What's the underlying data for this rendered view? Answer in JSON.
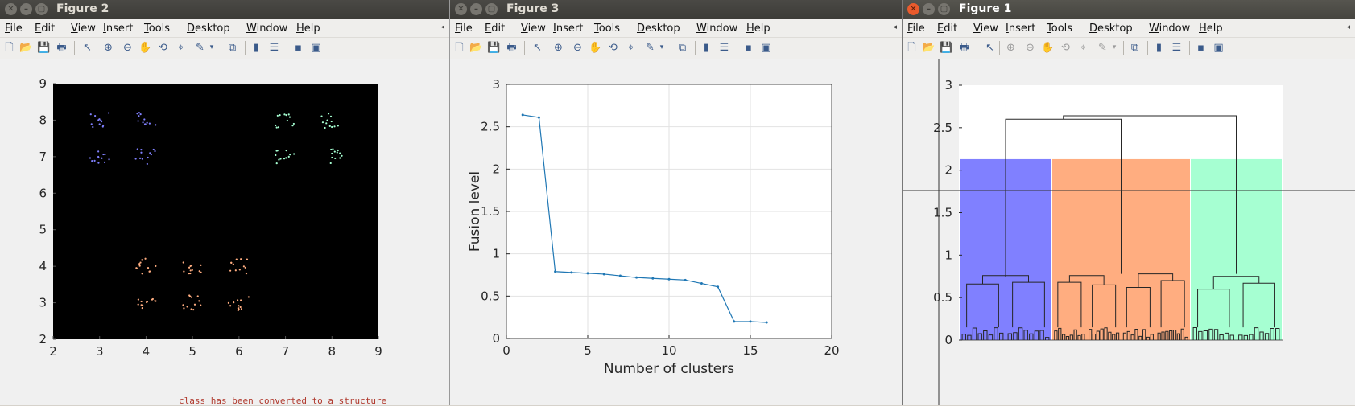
{
  "windows": [
    {
      "id": "fig2",
      "title": "Figure 2",
      "active": false
    },
    {
      "id": "fig3",
      "title": "Figure 3",
      "active": false
    },
    {
      "id": "fig1",
      "title": "Figure 1",
      "active": true
    }
  ],
  "menu": [
    "File",
    "Edit",
    "View",
    "Insert",
    "Tools",
    "Desktop",
    "Window",
    "Help"
  ],
  "toolbar_icons": [
    "new-figure-icon",
    "open-file-icon",
    "save-icon",
    "print-icon",
    "select-arrow-icon",
    "zoom-in-icon",
    "zoom-out-icon",
    "pan-hand-icon",
    "rotate-3d-icon",
    "data-cursor-icon",
    "brush-icon",
    "brush-dropdown-icon",
    "link-plot-icon",
    "colorbar-icon",
    "legend-icon",
    "hide-plot-tools-icon",
    "show-plot-tools-icon"
  ],
  "background_text": "class has been converted to a structure",
  "colors": {
    "blue": "#8080ff",
    "orange": "#ffad80",
    "green": "#a6ffd2",
    "line": "#1f77b4"
  },
  "chart_data": [
    {
      "id": "fig2",
      "type": "scatter",
      "background": "#000000",
      "xlim": [
        2,
        9
      ],
      "ylim": [
        2,
        9
      ],
      "xticks": [
        "2",
        "3",
        "4",
        "5",
        "6",
        "7",
        "8",
        "9"
      ],
      "yticks": [
        "2",
        "3",
        "4",
        "5",
        "6",
        "7",
        "8",
        "9"
      ],
      "clusters": [
        {
          "color": "#8080ff",
          "centers": [
            [
              3,
              8
            ],
            [
              4,
              8
            ],
            [
              3,
              7
            ],
            [
              4,
              7
            ]
          ]
        },
        {
          "color": "#a6ffd2",
          "centers": [
            [
              7,
              8
            ],
            [
              8,
              8
            ],
            [
              7,
              7
            ],
            [
              8,
              7
            ]
          ]
        },
        {
          "color": "#ffad80",
          "centers": [
            [
              4,
              4
            ],
            [
              5,
              4
            ],
            [
              6,
              4
            ],
            [
              4,
              3
            ],
            [
              5,
              3
            ],
            [
              6,
              3
            ]
          ]
        }
      ]
    },
    {
      "id": "fig3",
      "type": "line",
      "xlabel": "Number of clusters",
      "ylabel": "Fusion level",
      "xlim": [
        0,
        20
      ],
      "ylim": [
        0,
        3
      ],
      "xticks": [
        "0",
        "5",
        "10",
        "15",
        "20"
      ],
      "yticks": [
        "0",
        "0.5",
        "1",
        "1.5",
        "2",
        "2.5",
        "3"
      ],
      "grid": true,
      "x": [
        1,
        2,
        3,
        4,
        5,
        6,
        7,
        8,
        9,
        10,
        11,
        12,
        13,
        14,
        15,
        16
      ],
      "y": [
        2.64,
        2.61,
        0.79,
        0.78,
        0.77,
        0.76,
        0.74,
        0.72,
        0.71,
        0.7,
        0.69,
        0.65,
        0.61,
        0.2,
        0.2,
        0.19
      ]
    },
    {
      "id": "fig1",
      "type": "dendrogram",
      "ylim": [
        0,
        3
      ],
      "yticks": [
        "0",
        "0.5",
        "1",
        "1.5",
        "2",
        "2.5",
        "3"
      ],
      "regions": [
        {
          "color": "#8080ff",
          "height": 2.13
        },
        {
          "color": "#ffad80",
          "height": 2.13
        },
        {
          "color": "#a6ffd2",
          "height": 2.13
        }
      ],
      "merges": {
        "top": 2.64,
        "second": 2.6,
        "cluster_level": 0.78
      },
      "crosshair_y": 1.76
    }
  ]
}
